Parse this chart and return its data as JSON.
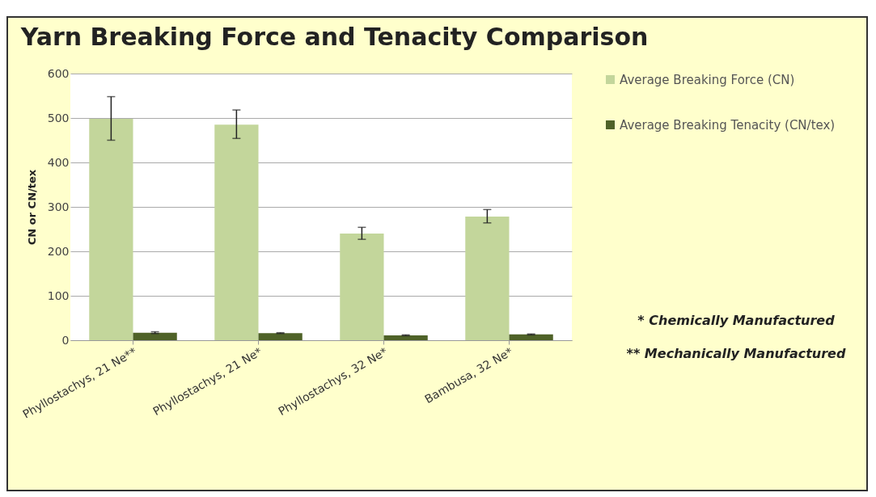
{
  "chart_data": {
    "type": "bar",
    "title": "Yarn Breaking Force and Tenacity Comparison",
    "ylabel": "CN or CN/tex",
    "categories": [
      "Phyllostachys, 21 Ne**",
      "Phyllostachys, 21 Ne*",
      "Phyllostachys, 32 Ne*",
      "Bambusa, 32 Ne*"
    ],
    "series": [
      {
        "name": "Average Breaking Force (CN)",
        "color": "#c3d69b",
        "values": [
          498,
          485,
          240,
          278
        ],
        "errors": [
          [
            450,
            548
          ],
          [
            454,
            518
          ],
          [
            227,
            254
          ],
          [
            264,
            294
          ]
        ]
      },
      {
        "name": "Average Breaking Tenacity (CN/tex)",
        "color": "#4f6228",
        "values": [
          17,
          16,
          11,
          13
        ],
        "errors": [
          2,
          1,
          1,
          1
        ]
      }
    ],
    "ylim": [
      0,
      600
    ],
    "yticks": [
      0,
      100,
      200,
      300,
      400,
      500,
      600
    ],
    "grid": "y",
    "legend": "right",
    "annotations": [
      "* Chemically Manufactured",
      "** Mechanically Manufactured"
    ]
  }
}
